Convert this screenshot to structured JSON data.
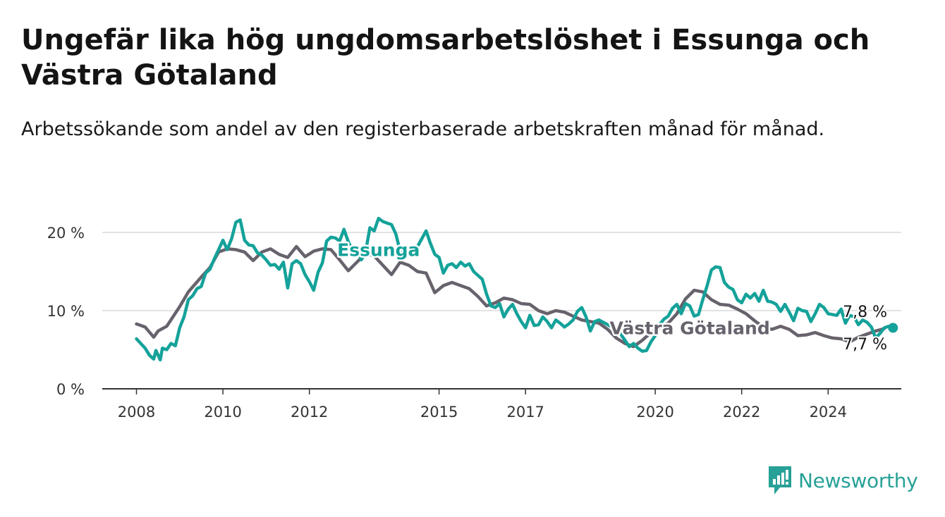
{
  "title": "Ungefär lika hög ungdomsarbetslöshet i Essunga och Västra Götaland",
  "subtitle": "Arbetssökande som andel av den registerbaserade arbetskraften månad för månad.",
  "logo": {
    "text": "Newsworthy",
    "icon": "newsworthy-logo-icon",
    "color": "#27a097"
  },
  "chart_data": {
    "type": "line",
    "x_unit": "year",
    "xlim": [
      2008,
      2025.8
    ],
    "ylim": [
      0,
      20
    ],
    "y_ticks": [
      0,
      10,
      20
    ],
    "y_tick_labels": [
      "0 %",
      "10 %",
      "20 %"
    ],
    "x_ticks": [
      2008,
      2010,
      2012,
      2015,
      2017,
      2020,
      2022,
      2024
    ],
    "x_tick_labels": [
      "2008",
      "2010",
      "2012",
      "2015",
      "2017",
      "2020",
      "2022",
      "2024"
    ],
    "grid": "horizontal",
    "legend": "none",
    "series": [
      {
        "name": "Västra Götaland",
        "color": "#67626c",
        "end_label": "7,7 %",
        "points": [
          [
            2008.0,
            8.3
          ],
          [
            2008.2,
            7.9
          ],
          [
            2008.4,
            6.6
          ],
          [
            2008.5,
            7.4
          ],
          [
            2008.7,
            8.0
          ],
          [
            2009.0,
            10.5
          ],
          [
            2009.2,
            12.4
          ],
          [
            2009.5,
            14.3
          ],
          [
            2009.7,
            15.5
          ],
          [
            2009.9,
            17.5
          ],
          [
            2010.1,
            17.9
          ],
          [
            2010.3,
            17.8
          ],
          [
            2010.5,
            17.5
          ],
          [
            2010.7,
            16.4
          ],
          [
            2010.9,
            17.5
          ],
          [
            2011.1,
            17.9
          ],
          [
            2011.3,
            17.2
          ],
          [
            2011.5,
            16.8
          ],
          [
            2011.7,
            18.2
          ],
          [
            2011.9,
            16.9
          ],
          [
            2012.1,
            17.6
          ],
          [
            2012.3,
            17.9
          ],
          [
            2012.5,
            17.8
          ],
          [
            2012.7,
            16.5
          ],
          [
            2012.9,
            15.1
          ],
          [
            2013.1,
            16.2
          ],
          [
            2013.3,
            17.3
          ],
          [
            2013.5,
            17.0
          ],
          [
            2013.7,
            15.8
          ],
          [
            2013.9,
            14.6
          ],
          [
            2014.1,
            16.2
          ],
          [
            2014.3,
            15.8
          ],
          [
            2014.5,
            15.0
          ],
          [
            2014.7,
            14.8
          ],
          [
            2014.9,
            12.3
          ],
          [
            2015.1,
            13.2
          ],
          [
            2015.3,
            13.6
          ],
          [
            2015.5,
            13.2
          ],
          [
            2015.7,
            12.8
          ],
          [
            2015.9,
            11.8
          ],
          [
            2016.1,
            10.6
          ],
          [
            2016.3,
            11.0
          ],
          [
            2016.5,
            11.6
          ],
          [
            2016.7,
            11.4
          ],
          [
            2016.9,
            10.9
          ],
          [
            2017.1,
            10.8
          ],
          [
            2017.3,
            10.0
          ],
          [
            2017.5,
            9.6
          ],
          [
            2017.7,
            10.0
          ],
          [
            2017.9,
            9.8
          ],
          [
            2018.1,
            9.3
          ],
          [
            2018.3,
            8.8
          ],
          [
            2018.5,
            8.6
          ],
          [
            2018.7,
            8.4
          ],
          [
            2018.9,
            7.6
          ],
          [
            2019.1,
            6.5
          ],
          [
            2019.3,
            5.8
          ],
          [
            2019.5,
            5.4
          ],
          [
            2019.7,
            6.2
          ],
          [
            2019.9,
            7.2
          ],
          [
            2020.1,
            7.8
          ],
          [
            2020.3,
            8.4
          ],
          [
            2020.5,
            9.6
          ],
          [
            2020.7,
            11.5
          ],
          [
            2020.9,
            12.6
          ],
          [
            2021.1,
            12.4
          ],
          [
            2021.3,
            11.4
          ],
          [
            2021.5,
            10.8
          ],
          [
            2021.7,
            10.7
          ],
          [
            2021.9,
            10.2
          ],
          [
            2022.1,
            9.6
          ],
          [
            2022.3,
            8.7
          ],
          [
            2022.5,
            7.9
          ],
          [
            2022.7,
            7.6
          ],
          [
            2022.9,
            8.0
          ],
          [
            2023.1,
            7.6
          ],
          [
            2023.3,
            6.8
          ],
          [
            2023.5,
            6.9
          ],
          [
            2023.7,
            7.2
          ],
          [
            2023.9,
            6.8
          ],
          [
            2024.1,
            6.5
          ],
          [
            2024.3,
            6.4
          ],
          [
            2024.5,
            6.0
          ],
          [
            2024.7,
            6.6
          ],
          [
            2024.9,
            7.0
          ],
          [
            2025.1,
            7.4
          ],
          [
            2025.3,
            7.7
          ]
        ]
      },
      {
        "name": "Essunga",
        "color": "#14a29a",
        "end_label": "7,8 %",
        "points": [
          [
            2008.0,
            6.4
          ],
          [
            2008.1,
            5.8
          ],
          [
            2008.2,
            5.2
          ],
          [
            2008.3,
            4.3
          ],
          [
            2008.4,
            3.8
          ],
          [
            2008.45,
            4.9
          ],
          [
            2008.55,
            3.7
          ],
          [
            2008.6,
            5.2
          ],
          [
            2008.7,
            5.0
          ],
          [
            2008.8,
            5.8
          ],
          [
            2008.9,
            5.5
          ],
          [
            2009.0,
            7.8
          ],
          [
            2009.1,
            9.2
          ],
          [
            2009.2,
            11.4
          ],
          [
            2009.3,
            11.9
          ],
          [
            2009.4,
            12.8
          ],
          [
            2009.5,
            13.1
          ],
          [
            2009.6,
            14.8
          ],
          [
            2009.7,
            15.3
          ],
          [
            2009.8,
            16.6
          ],
          [
            2009.9,
            17.8
          ],
          [
            2010.0,
            19.0
          ],
          [
            2010.1,
            17.8
          ],
          [
            2010.2,
            19.2
          ],
          [
            2010.3,
            21.3
          ],
          [
            2010.4,
            21.6
          ],
          [
            2010.5,
            19.0
          ],
          [
            2010.6,
            18.4
          ],
          [
            2010.7,
            18.3
          ],
          [
            2010.8,
            17.4
          ],
          [
            2010.9,
            17.1
          ],
          [
            2011.0,
            16.5
          ],
          [
            2011.1,
            15.8
          ],
          [
            2011.2,
            15.9
          ],
          [
            2011.3,
            15.3
          ],
          [
            2011.4,
            16.2
          ],
          [
            2011.5,
            12.9
          ],
          [
            2011.6,
            16.0
          ],
          [
            2011.7,
            16.4
          ],
          [
            2011.8,
            16.0
          ],
          [
            2011.9,
            14.6
          ],
          [
            2012.0,
            13.7
          ],
          [
            2012.1,
            12.6
          ],
          [
            2012.2,
            14.9
          ],
          [
            2012.3,
            16.1
          ],
          [
            2012.4,
            18.9
          ],
          [
            2012.5,
            19.4
          ],
          [
            2012.6,
            19.3
          ],
          [
            2012.7,
            18.9
          ],
          [
            2012.8,
            20.4
          ],
          [
            2012.9,
            18.8
          ],
          [
            2013.0,
            17.7
          ],
          [
            2013.1,
            18.0
          ],
          [
            2013.2,
            16.5
          ],
          [
            2013.3,
            17.5
          ],
          [
            2013.4,
            20.6
          ],
          [
            2013.5,
            20.2
          ],
          [
            2013.6,
            21.8
          ],
          [
            2013.7,
            21.4
          ],
          [
            2013.8,
            21.2
          ],
          [
            2013.9,
            21.0
          ],
          [
            2014.0,
            19.8
          ],
          [
            2014.1,
            17.6
          ],
          [
            2014.2,
            17.3
          ],
          [
            2014.3,
            17.9
          ],
          [
            2014.5,
            18.2
          ],
          [
            2014.7,
            20.2
          ],
          [
            2014.8,
            18.6
          ],
          [
            2014.9,
            17.2
          ],
          [
            2015.0,
            16.8
          ],
          [
            2015.1,
            14.8
          ],
          [
            2015.2,
            15.8
          ],
          [
            2015.3,
            16.0
          ],
          [
            2015.4,
            15.5
          ],
          [
            2015.5,
            16.2
          ],
          [
            2015.6,
            15.7
          ],
          [
            2015.7,
            16.0
          ],
          [
            2015.8,
            15.0
          ],
          [
            2015.9,
            14.5
          ],
          [
            2016.0,
            14.0
          ],
          [
            2016.1,
            12.1
          ],
          [
            2016.2,
            10.6
          ],
          [
            2016.3,
            10.4
          ],
          [
            2016.4,
            10.9
          ],
          [
            2016.5,
            9.2
          ],
          [
            2016.6,
            10.2
          ],
          [
            2016.7,
            10.8
          ],
          [
            2016.8,
            9.6
          ],
          [
            2016.9,
            8.6
          ],
          [
            2017.0,
            7.8
          ],
          [
            2017.1,
            9.4
          ],
          [
            2017.2,
            8.1
          ],
          [
            2017.3,
            8.2
          ],
          [
            2017.4,
            9.2
          ],
          [
            2017.5,
            8.6
          ],
          [
            2017.6,
            7.8
          ],
          [
            2017.7,
            8.8
          ],
          [
            2017.8,
            8.4
          ],
          [
            2017.9,
            7.9
          ],
          [
            2018.0,
            8.3
          ],
          [
            2018.1,
            8.8
          ],
          [
            2018.2,
            9.9
          ],
          [
            2018.3,
            10.4
          ],
          [
            2018.4,
            9.2
          ],
          [
            2018.5,
            7.4
          ],
          [
            2018.6,
            8.6
          ],
          [
            2018.7,
            8.8
          ],
          [
            2018.8,
            8.5
          ],
          [
            2018.9,
            8.2
          ],
          [
            2019.0,
            7.9
          ],
          [
            2019.1,
            7.6
          ],
          [
            2019.2,
            7.0
          ],
          [
            2019.3,
            6.2
          ],
          [
            2019.4,
            5.4
          ],
          [
            2019.5,
            5.8
          ],
          [
            2019.6,
            5.2
          ],
          [
            2019.7,
            4.8
          ],
          [
            2019.8,
            4.9
          ],
          [
            2019.9,
            6.0
          ],
          [
            2020.0,
            6.8
          ],
          [
            2020.1,
            8.2
          ],
          [
            2020.2,
            8.9
          ],
          [
            2020.3,
            9.3
          ],
          [
            2020.4,
            10.3
          ],
          [
            2020.5,
            10.8
          ],
          [
            2020.6,
            9.6
          ],
          [
            2020.7,
            10.9
          ],
          [
            2020.8,
            10.6
          ],
          [
            2020.9,
            9.3
          ],
          [
            2021.0,
            9.5
          ],
          [
            2021.1,
            11.4
          ],
          [
            2021.2,
            13.2
          ],
          [
            2021.3,
            15.2
          ],
          [
            2021.4,
            15.6
          ],
          [
            2021.5,
            15.5
          ],
          [
            2021.6,
            13.6
          ],
          [
            2021.7,
            13.0
          ],
          [
            2021.8,
            12.7
          ],
          [
            2021.9,
            11.4
          ],
          [
            2022.0,
            11.0
          ],
          [
            2022.1,
            12.1
          ],
          [
            2022.2,
            11.6
          ],
          [
            2022.3,
            12.2
          ],
          [
            2022.4,
            11.2
          ],
          [
            2022.5,
            12.6
          ],
          [
            2022.6,
            11.2
          ],
          [
            2022.7,
            11.1
          ],
          [
            2022.8,
            10.8
          ],
          [
            2022.9,
            9.9
          ],
          [
            2023.0,
            10.8
          ],
          [
            2023.1,
            9.8
          ],
          [
            2023.2,
            8.7
          ],
          [
            2023.3,
            10.3
          ],
          [
            2023.4,
            10.0
          ],
          [
            2023.5,
            9.9
          ],
          [
            2023.6,
            8.6
          ],
          [
            2023.7,
            9.6
          ],
          [
            2023.8,
            10.8
          ],
          [
            2023.9,
            10.4
          ],
          [
            2024.0,
            9.6
          ],
          [
            2024.1,
            9.5
          ],
          [
            2024.2,
            9.4
          ],
          [
            2024.3,
            10.2
          ],
          [
            2024.4,
            8.4
          ],
          [
            2024.5,
            9.4
          ],
          [
            2024.6,
            9.2
          ],
          [
            2024.7,
            8.2
          ],
          [
            2024.8,
            8.8
          ],
          [
            2024.9,
            8.5
          ],
          [
            2025.0,
            7.9
          ],
          [
            2025.1,
            6.5
          ],
          [
            2025.2,
            7.1
          ],
          [
            2025.3,
            7.8
          ],
          [
            2025.4,
            8.0
          ],
          [
            2025.5,
            7.8
          ]
        ]
      }
    ],
    "series_labels": [
      {
        "series": "Essunga",
        "text": "Essunga",
        "x": 2013.6,
        "y": 17.0
      },
      {
        "series": "Västra Götaland",
        "text": "Västra Götaland",
        "x": 2020.8,
        "y": 7.0
      }
    ]
  }
}
